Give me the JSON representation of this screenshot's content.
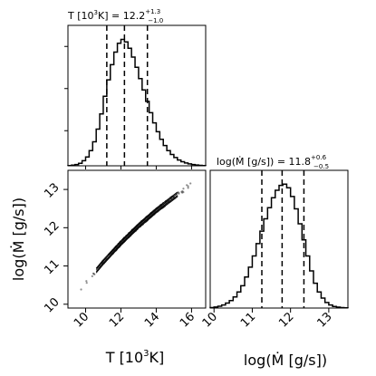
{
  "chart_data": [
    {
      "type": "histogram",
      "panel": "top-left",
      "title_main": "T [10",
      "title_sup": "3",
      "title_rest": "K] = 12.2",
      "title_upper": "+1.3",
      "title_lower": "−1.0",
      "xlim": [
        9.0,
        16.8
      ],
      "quantiles": [
        11.2,
        12.2,
        13.5
      ],
      "bins_start": 9.0,
      "bin_width": 0.2,
      "counts": [
        0.002,
        0.005,
        0.01,
        0.02,
        0.04,
        0.07,
        0.12,
        0.19,
        0.29,
        0.41,
        0.55,
        0.68,
        0.8,
        0.9,
        0.97,
        1.0,
        0.98,
        0.93,
        0.86,
        0.78,
        0.69,
        0.6,
        0.51,
        0.42,
        0.34,
        0.27,
        0.21,
        0.16,
        0.12,
        0.09,
        0.065,
        0.046,
        0.032,
        0.022,
        0.015,
        0.01,
        0.006,
        0.004,
        0.002
      ]
    },
    {
      "type": "scatter",
      "panel": "bottom-left",
      "xlabel_main": "T [10",
      "xlabel_sup": "3",
      "xlabel_rest": "K]",
      "ylabel": "log(Ṁ [g/s])",
      "xlim": [
        9.0,
        16.8
      ],
      "ylim": [
        9.9,
        13.5
      ],
      "xticks": [
        10,
        12,
        14,
        16
      ],
      "yticks": [
        10,
        11,
        12,
        13
      ],
      "relation": {
        "T": [
          9.1,
          10.0,
          11.0,
          12.0,
          13.0,
          14.0,
          15.0,
          16.0,
          16.8
        ],
        "logMdot": [
          10.0,
          10.55,
          11.1,
          11.6,
          12.05,
          12.45,
          12.8,
          13.15,
          13.4
        ]
      }
    },
    {
      "type": "histogram",
      "panel": "bottom-right",
      "title_main": "log(Ṁ [g/s]) = 11.8",
      "title_upper": "+0.6",
      "title_lower": "−0.5",
      "xlabel": "log(Ṁ [g/s])",
      "xlim": [
        9.9,
        13.5
      ],
      "xticks": [
        10,
        11,
        12,
        13
      ],
      "quantiles": [
        11.25,
        11.78,
        12.35
      ],
      "bins_start": 9.9,
      "bin_width": 0.1,
      "counts": [
        0.004,
        0.008,
        0.015,
        0.025,
        0.04,
        0.06,
        0.09,
        0.13,
        0.18,
        0.25,
        0.33,
        0.42,
        0.52,
        0.62,
        0.72,
        0.81,
        0.89,
        0.95,
        0.99,
        1.0,
        0.97,
        0.9,
        0.8,
        0.68,
        0.55,
        0.42,
        0.3,
        0.2,
        0.13,
        0.08,
        0.045,
        0.025,
        0.013,
        0.007,
        0.004,
        0.002
      ]
    }
  ]
}
